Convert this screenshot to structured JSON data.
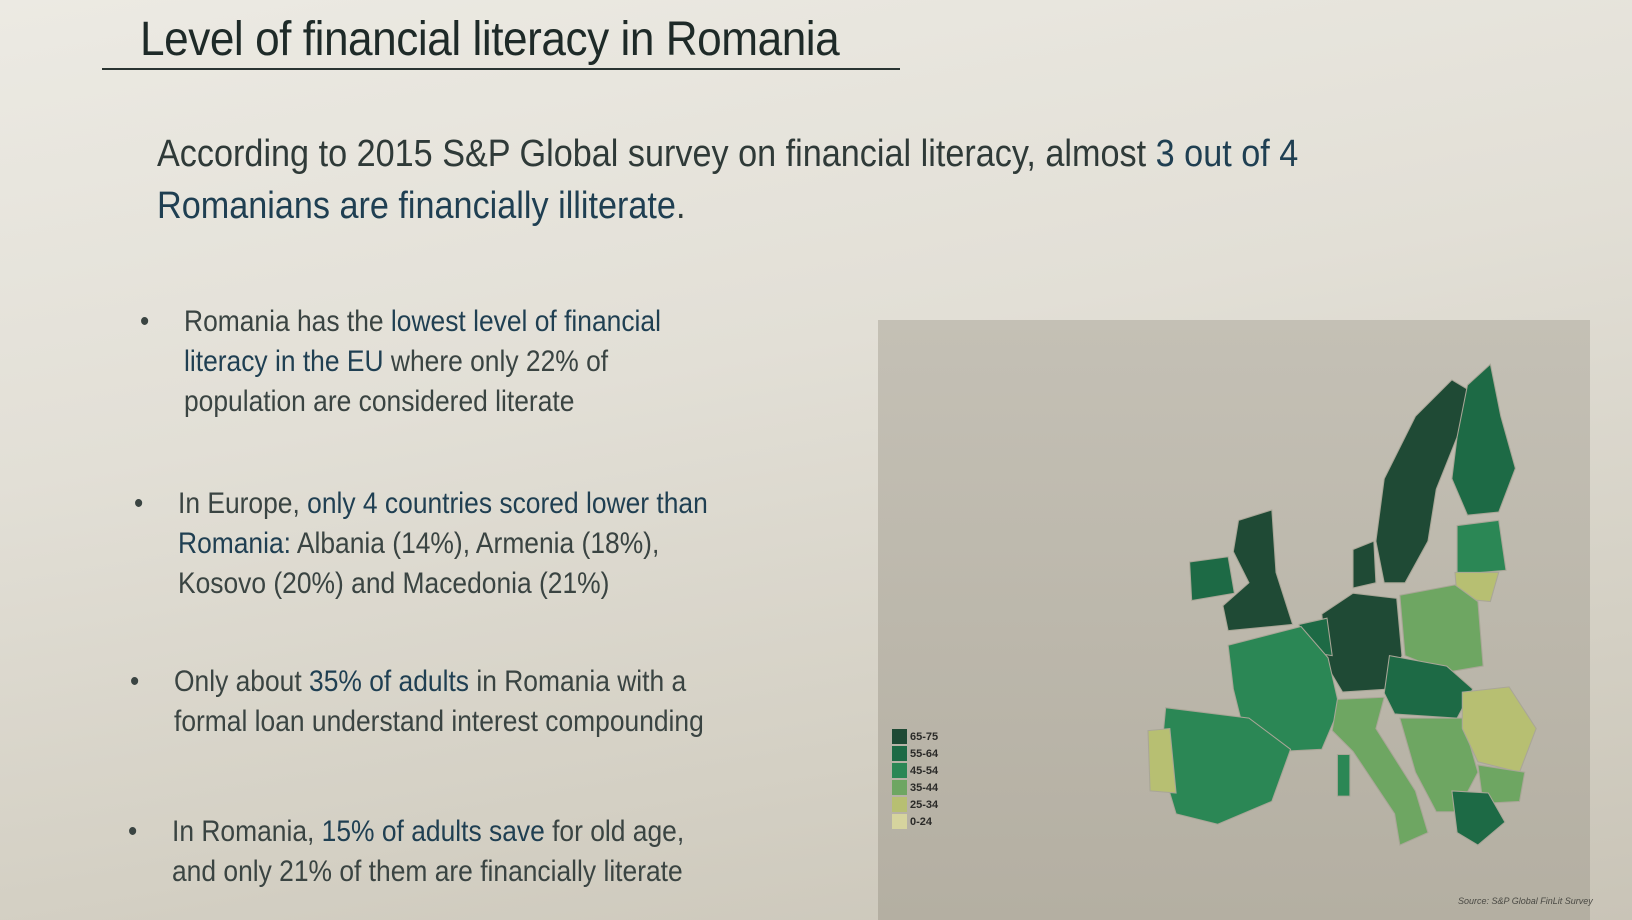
{
  "title": "Level of financial literacy in Romania",
  "intro": {
    "part1": "According to 2015 S&P Global survey on financial literacy, almost ",
    "highlight1": "3 out of 4 Romanians are financially illiterate",
    "part2": "."
  },
  "bullets": [
    {
      "pre": "Romania has the ",
      "hl": "lowest level of financial literacy in the EU",
      "post": " where only 22% of population are considered literate"
    },
    {
      "pre": "In Europe, ",
      "hl": "only 4 countries scored lower than Romania:",
      "post": " Albania (14%), Armenia (18%), Kosovo (20%) and Macedonia (21%)"
    },
    {
      "pre": "Only about ",
      "hl": "35% of adults",
      "post": " in Romania with a formal loan understand interest compounding"
    },
    {
      "pre": "In Romania, ",
      "hl": "15% of adults save",
      "post": " for old age, and only 21% of them are financially literate"
    }
  ],
  "map": {
    "legend": [
      {
        "label": "65-75",
        "color": "#1f4a35"
      },
      {
        "label": "55-64",
        "color": "#1d6a45"
      },
      {
        "label": "45-54",
        "color": "#2b8755"
      },
      {
        "label": "35-44",
        "color": "#6ea662"
      },
      {
        "label": "25-34",
        "color": "#b7bf72"
      },
      {
        "label": "0-24",
        "color": "#d6d49e"
      }
    ],
    "source": "Source: S&P Global FinLit Survey"
  }
}
